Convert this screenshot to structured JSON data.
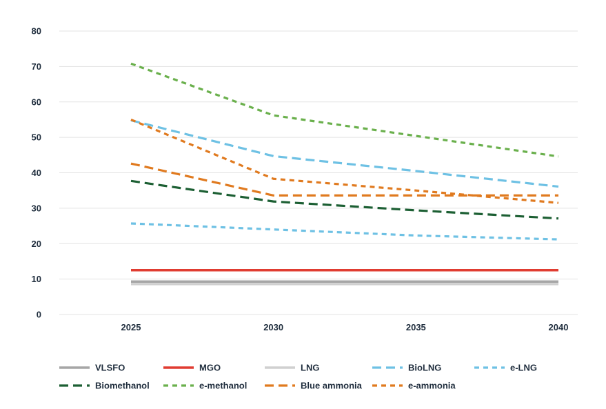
{
  "chart_data": {
    "type": "line",
    "title": "",
    "xlabel": "",
    "ylabel": "",
    "x": [
      2025,
      2030,
      2035,
      2040
    ],
    "x_tick_labels": [
      "2025",
      "2030",
      "2035",
      "2040"
    ],
    "ylim": [
      0,
      80
    ],
    "y_ticks": [
      0,
      10,
      20,
      30,
      40,
      50,
      60,
      70,
      80
    ],
    "grid": "horizontal",
    "legend_position": "bottom",
    "series": [
      {
        "name": "VLSFO",
        "values": [
          9.3,
          9.3,
          9.3,
          9.3
        ],
        "color": "#a6a6a6",
        "style": "solid"
      },
      {
        "name": "MGO",
        "values": [
          12.5,
          12.5,
          12.5,
          12.5
        ],
        "color": "#e03c31",
        "style": "solid"
      },
      {
        "name": "LNG",
        "values": [
          8.6,
          8.6,
          8.6,
          8.6
        ],
        "color": "#d0d0d0",
        "style": "solid"
      },
      {
        "name": "BioLNG",
        "values": [
          54.8,
          44.7,
          40.5,
          36.1
        ],
        "color": "#6ec1e4",
        "style": "dashed"
      },
      {
        "name": "e-LNG",
        "values": [
          25.7,
          24.0,
          22.3,
          21.2
        ],
        "color": "#6ec1e4",
        "style": "short-dashed"
      },
      {
        "name": "Biomethanol",
        "values": [
          37.7,
          31.9,
          29.4,
          27.1
        ],
        "color": "#1c5f33",
        "style": "dashed"
      },
      {
        "name": "e-methanol",
        "values": [
          70.8,
          56.2,
          50.4,
          44.6
        ],
        "color": "#6ab04c",
        "style": "short-dashed"
      },
      {
        "name": "Blue ammonia",
        "values": [
          42.6,
          33.6,
          33.6,
          33.6
        ],
        "color": "#e07a1f",
        "style": "dashed"
      },
      {
        "name": "e-ammonia",
        "values": [
          55.0,
          38.3,
          35.0,
          31.5
        ],
        "color": "#e07a1f",
        "style": "short-dashed"
      }
    ]
  }
}
